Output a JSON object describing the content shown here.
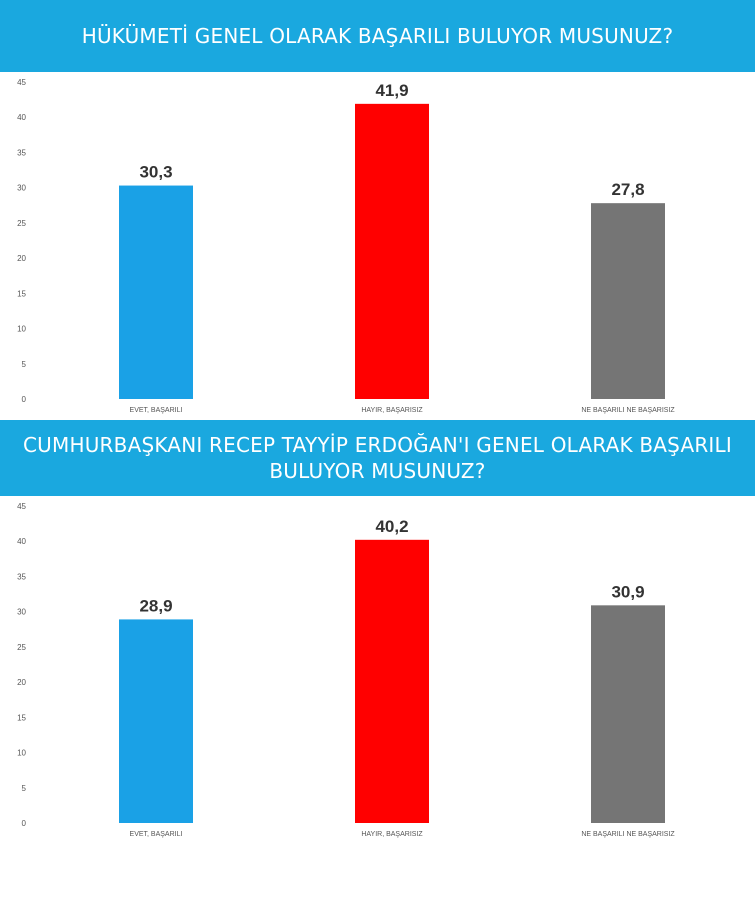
{
  "chart_data": [
    {
      "type": "bar",
      "title": "HÜKÜMETİ GENEL OLARAK BAŞARILI BULUYOR MUSUNUZ?",
      "categories": [
        "EVET, BAŞARILI",
        "HAYIR, BAŞARISIZ",
        "NE BAŞARILI NE BAŞARISIZ"
      ],
      "values": [
        30.3,
        41.9,
        27.8
      ],
      "value_labels": [
        "30,3",
        "41,9",
        "27,8"
      ],
      "colors": [
        "#1aa1e6",
        "#ff0000",
        "#757575"
      ],
      "yticks": [
        "0",
        "5",
        "10",
        "15",
        "20",
        "25",
        "30",
        "35",
        "40",
        "45"
      ],
      "ylim": [
        0,
        45
      ],
      "grid": false,
      "legend": "none"
    },
    {
      "type": "bar",
      "title": "CUMHURBAŞKANI RECEP TAYYİP ERDOĞAN'I GENEL OLARAK BAŞARILI BULUYOR MUSUNUZ?",
      "categories": [
        "EVET, BAŞARILI",
        "HAYIR, BAŞARISIZ",
        "NE BAŞARILI NE BAŞARISIZ"
      ],
      "values": [
        28.9,
        40.2,
        30.9
      ],
      "value_labels": [
        "28,9",
        "40,2",
        "30,9"
      ],
      "colors": [
        "#1aa1e6",
        "#ff0000",
        "#757575"
      ],
      "yticks": [
        "0",
        "5",
        "10",
        "15",
        "20",
        "25",
        "30",
        "35",
        "40",
        "45"
      ],
      "ylim": [
        0,
        45
      ],
      "grid": false,
      "legend": "none"
    }
  ]
}
